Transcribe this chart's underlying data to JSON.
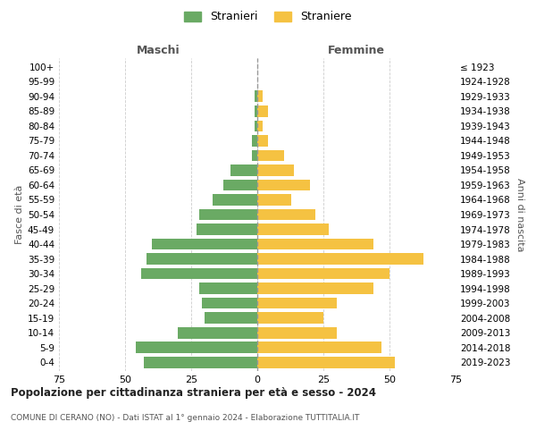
{
  "age_groups": [
    "0-4",
    "5-9",
    "10-14",
    "15-19",
    "20-24",
    "25-29",
    "30-34",
    "35-39",
    "40-44",
    "45-49",
    "50-54",
    "55-59",
    "60-64",
    "65-69",
    "70-74",
    "75-79",
    "80-84",
    "85-89",
    "90-94",
    "95-99",
    "100+"
  ],
  "birth_years": [
    "2019-2023",
    "2014-2018",
    "2009-2013",
    "2004-2008",
    "1999-2003",
    "1994-1998",
    "1989-1993",
    "1984-1988",
    "1979-1983",
    "1974-1978",
    "1969-1973",
    "1964-1968",
    "1959-1963",
    "1954-1958",
    "1949-1953",
    "1944-1948",
    "1939-1943",
    "1934-1938",
    "1929-1933",
    "1924-1928",
    "≤ 1923"
  ],
  "males": [
    43,
    46,
    30,
    20,
    21,
    22,
    44,
    42,
    40,
    23,
    22,
    17,
    13,
    10,
    2,
    2,
    1,
    1,
    1,
    0,
    0
  ],
  "females": [
    52,
    47,
    30,
    25,
    30,
    44,
    50,
    63,
    44,
    27,
    22,
    13,
    20,
    14,
    10,
    4,
    2,
    4,
    2,
    0,
    0
  ],
  "male_color": "#6aaa64",
  "female_color": "#f5c242",
  "bg_color": "#ffffff",
  "grid_color": "#cccccc",
  "title": "Popolazione per cittadinanza straniera per età e sesso - 2024",
  "subtitle": "COMUNE DI CERANO (NO) - Dati ISTAT al 1° gennaio 2024 - Elaborazione TUTTITALIA.IT",
  "xlabel_left": "Maschi",
  "xlabel_right": "Femmine",
  "ylabel_left": "Fasce di età",
  "ylabel_right": "Anni di nascita",
  "legend_male": "Stranieri",
  "legend_female": "Straniere",
  "xlim": 75
}
